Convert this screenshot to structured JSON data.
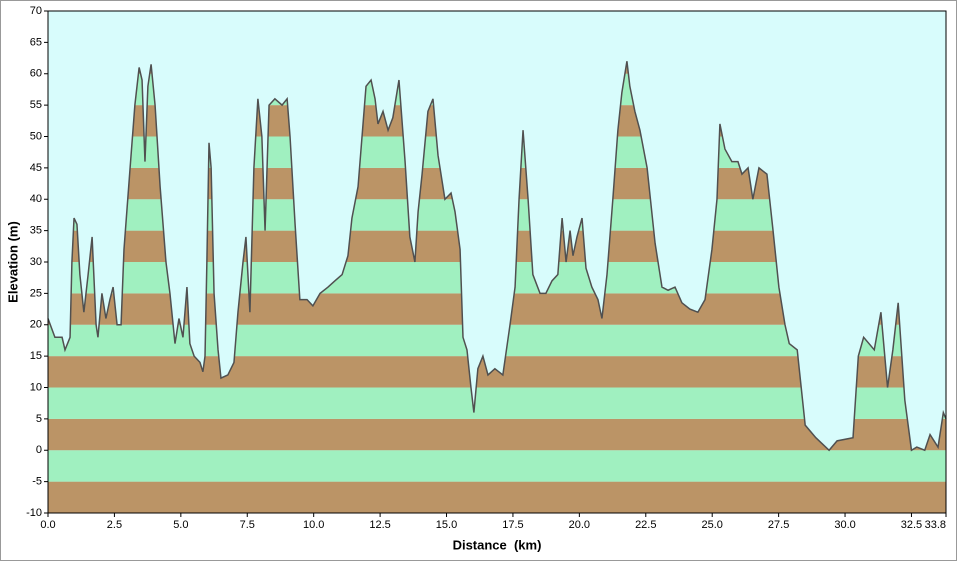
{
  "chart_data": {
    "type": "area",
    "xlabel": "Distance  (km)",
    "ylabel": "Elevation (m)",
    "x": [
      0,
      0.26,
      0.53,
      0.64,
      0.83,
      0.9,
      0.98,
      1.09,
      1.2,
      1.35,
      1.51,
      1.66,
      1.81,
      1.88,
      2.03,
      2.18,
      2.33,
      2.45,
      2.6,
      2.75,
      2.86,
      3.09,
      3.27,
      3.43,
      3.54,
      3.65,
      3.76,
      3.88,
      4.03,
      4.22,
      4.44,
      4.59,
      4.78,
      4.93,
      5.08,
      5.23,
      5.34,
      5.5,
      5.72,
      5.83,
      5.91,
      5.98,
      6.06,
      6.14,
      6.25,
      6.4,
      6.51,
      6.77,
      7.0,
      7.15,
      7.34,
      7.45,
      7.6,
      7.75,
      7.9,
      8.05,
      8.17,
      8.32,
      8.54,
      8.81,
      9.0,
      9.11,
      9.3,
      9.48,
      9.75,
      9.97,
      10.24,
      10.54,
      10.8,
      11.07,
      11.29,
      11.44,
      11.67,
      11.82,
      11.97,
      12.16,
      12.31,
      12.42,
      12.61,
      12.8,
      12.98,
      13.21,
      13.44,
      13.62,
      13.81,
      13.93,
      14.08,
      14.3,
      14.49,
      14.68,
      14.94,
      15.17,
      15.32,
      15.51,
      15.62,
      15.77,
      15.92,
      16.03,
      16.18,
      16.37,
      16.56,
      16.82,
      17.12,
      17.39,
      17.58,
      17.73,
      17.88,
      18.07,
      18.25,
      18.52,
      18.74,
      18.97,
      19.19,
      19.35,
      19.5,
      19.65,
      19.76,
      19.91,
      20.1,
      20.25,
      20.47,
      20.7,
      20.85,
      21.04,
      21.26,
      21.45,
      21.6,
      21.79,
      21.9,
      22.09,
      22.28,
      22.55,
      22.85,
      23.11,
      23.34,
      23.6,
      23.86,
      24.16,
      24.46,
      24.73,
      24.99,
      25.18,
      25.29,
      25.48,
      25.74,
      25.97,
      26.12,
      26.35,
      26.53,
      26.76,
      27.06,
      27.29,
      27.51,
      27.74,
      27.9,
      28.2,
      28.5,
      28.9,
      29.4,
      29.7,
      30.3,
      30.5,
      30.7,
      31.1,
      31.35,
      31.6,
      31.8,
      32.0,
      32.25,
      32.5,
      32.7,
      33.0,
      33.2,
      33.5,
      33.7,
      33.8
    ],
    "values": [
      21,
      18,
      18,
      16,
      18,
      30,
      37,
      36,
      28,
      22,
      28,
      34,
      20,
      18,
      25,
      21,
      24,
      26,
      20,
      20,
      32,
      45,
      55,
      61,
      59,
      46,
      58,
      61.5,
      55,
      42,
      30,
      25,
      17,
      21,
      18,
      26,
      17,
      15,
      14,
      12.5,
      15,
      30,
      49,
      45,
      25,
      16,
      11.5,
      12,
      14,
      22,
      30,
      34,
      22,
      45,
      56,
      50,
      35,
      55,
      56,
      55,
      56,
      50,
      36,
      24,
      24,
      23,
      25,
      26,
      27,
      28,
      31,
      37,
      42,
      50,
      58,
      59,
      56,
      52,
      54,
      51,
      53,
      59,
      46,
      34,
      30,
      38,
      44,
      54,
      56,
      47,
      40,
      41,
      38,
      32,
      18,
      16,
      10,
      6,
      13,
      15,
      12,
      13,
      12,
      20,
      26,
      40,
      51,
      40,
      28,
      25,
      25,
      27,
      28,
      37,
      30,
      35,
      31,
      34,
      37,
      29,
      26,
      24,
      21,
      28,
      40,
      51,
      57,
      62,
      58,
      54,
      51,
      45,
      33,
      26,
      25.5,
      26,
      23.5,
      22.5,
      22,
      24,
      32,
      40,
      52,
      48,
      46,
      46,
      44,
      45,
      40,
      45,
      44,
      35,
      26,
      20,
      17,
      16,
      4,
      2,
      0,
      1.5,
      2,
      15,
      18,
      16,
      22,
      10,
      16,
      23.5,
      8,
      0,
      0.5,
      0,
      2.5,
      0.5,
      6,
      5
    ],
    "line_color": "#505050",
    "band_colors": [
      "#bb9466",
      "#a0f0c0"
    ],
    "background": "#d8fcfc",
    "xlim": [
      0,
      33.8
    ],
    "ylim": [
      -10,
      70
    ],
    "xticks": [
      {
        "value": 0,
        "label": "0.0"
      },
      2.5,
      {
        "value": 5,
        "label": "5.0"
      },
      7.5,
      {
        "value": 10,
        "label": "10.0"
      },
      12.5,
      {
        "value": 15,
        "label": "15.0"
      },
      17.5,
      {
        "value": 20,
        "label": "20.0"
      },
      22.5,
      {
        "value": 25,
        "label": "25.0"
      },
      27.5,
      {
        "value": 30,
        "label": "30.0"
      },
      32.5,
      33.8
    ],
    "yticks": [
      -10,
      -5,
      0,
      5,
      10,
      15,
      20,
      25,
      30,
      35,
      40,
      45,
      50,
      55,
      60,
      65,
      70
    ]
  }
}
